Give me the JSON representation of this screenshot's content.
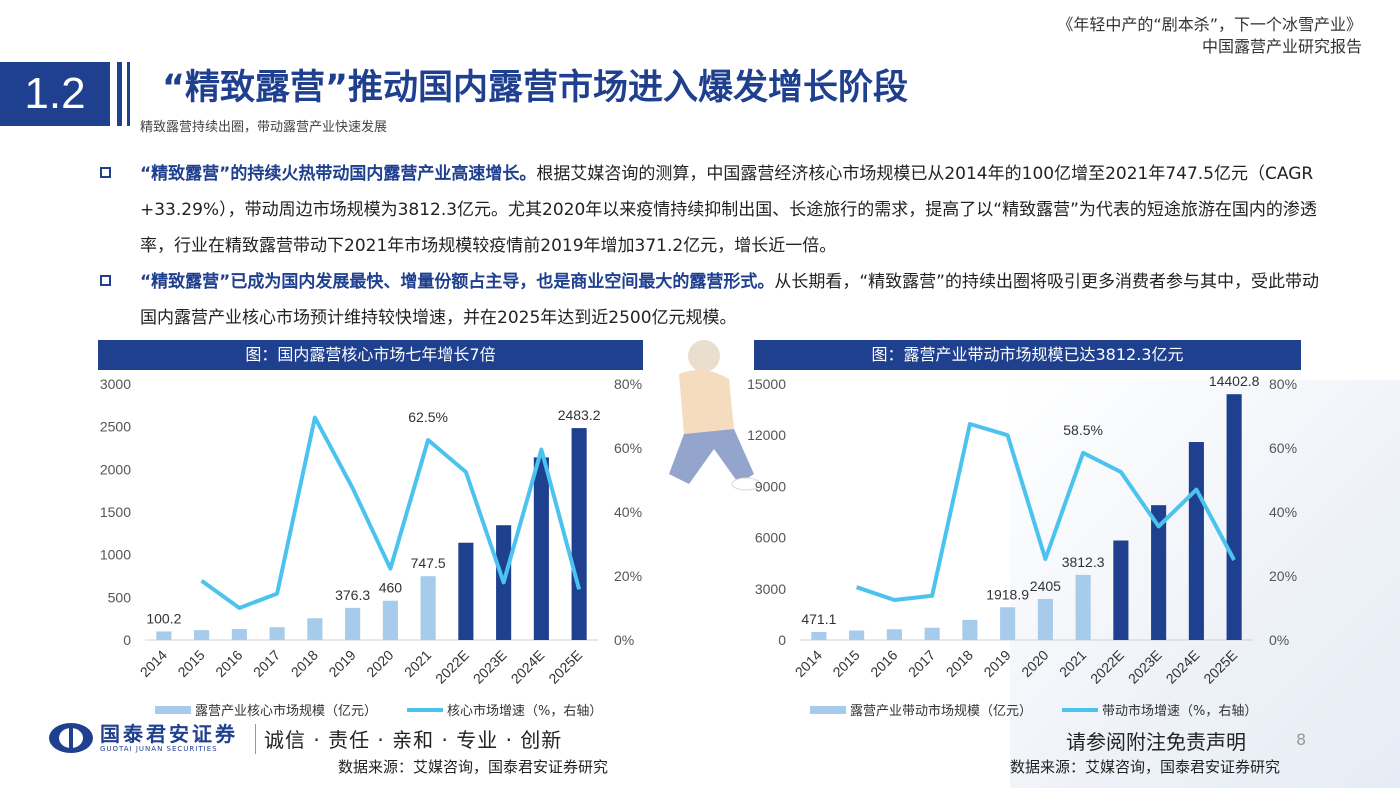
{
  "header": {
    "report_title": "《年轻中产的“剧本杀”，下一个冰雪产业》",
    "report_subtitle": "中国露营产业研究报告"
  },
  "section": {
    "number": "1.2",
    "title": "“精致露营”推动国内露营市场进入爆发增长阶段",
    "subtitle": "精致露营持续出圈，带动露营产业快速发展"
  },
  "bullets": [
    {
      "highlight": "“精致露营”的持续火热带动国内露营产业高速增长。",
      "text": "根据艾媒咨询的测算，中国露营经济核心市场规模已从2014年的100亿增至2021年747.5亿元（CAGR +33.29%），带动周边市场规模为3812.3亿元。尤其2020年以来疫情持续抑制出国、长途旅行的需求，提高了以“精致露营”为代表的短途旅游在国内的渗透率，行业在精致露营带动下2021年市场规模较疫情前2019年增加371.2亿元，增长近一倍。"
    },
    {
      "highlight": "“精致露营”已成为国内发展最快、增量份额占主导，也是商业空间最大的露营形式。",
      "text": "从长期看，“精致露营”的持续出圈将吸引更多消费者参与其中，受此带动国内露营产业核心市场预计维持较快增速，并在2025年达到近2500亿元规模。"
    }
  ],
  "chart_data": [
    {
      "type": "bar",
      "title": "图：国内露营核心市场七年增长7倍",
      "categories": [
        "2014",
        "2015",
        "2016",
        "2017",
        "2018",
        "2019",
        "2020",
        "2021",
        "2022E",
        "2023E",
        "2024E",
        "2025E"
      ],
      "series": [
        {
          "name": "露营产业核心市场规模（亿元）",
          "type": "bar",
          "axis": "left",
          "values": [
            100.2,
            116,
            128,
            150,
            255,
            376.3,
            460,
            747.5,
            1140,
            1345,
            2140,
            2483.2
          ],
          "labels": [
            "100.2",
            "",
            "",
            "",
            "",
            "376.3",
            "460",
            "747.5",
            "",
            "",
            "",
            "2483.2"
          ],
          "colors": [
            "#a7cbea",
            "#a7cbea",
            "#a7cbea",
            "#a7cbea",
            "#a7cbea",
            "#a7cbea",
            "#a7cbea",
            "#a7cbea",
            "#1f3f8f",
            "#1f3f8f",
            "#1f3f8f",
            "#1f3f8f"
          ]
        },
        {
          "name": "核心市场增速（%，右轴）",
          "type": "line",
          "axis": "right",
          "color": "#4cc3ee",
          "values": [
            null,
            18.5,
            10,
            14.5,
            69.5,
            47.5,
            22.3,
            62.5,
            52.5,
            18,
            59.5,
            15.8
          ],
          "labels": [
            "",
            "",
            "",
            "",
            "",
            "",
            "",
            "62.5%",
            "",
            "",
            "",
            ""
          ]
        }
      ],
      "ylim_left": [
        0,
        3000
      ],
      "yticks_left": [
        "0",
        "500",
        "1000",
        "1500",
        "2000",
        "2500",
        "3000"
      ],
      "ylim_right": [
        0,
        80
      ],
      "yticks_right": [
        "0%",
        "20%",
        "40%",
        "60%",
        "80%"
      ],
      "legend": "bottom",
      "source": "数据来源：艾媒咨询，国泰君安证券研究"
    },
    {
      "type": "bar",
      "title": "图：露营产业带动市场规模已达3812.3亿元",
      "categories": [
        "2014",
        "2015",
        "2016",
        "2017",
        "2018",
        "2019",
        "2020",
        "2021",
        "2022E",
        "2023E",
        "2024E",
        "2025E"
      ],
      "series": [
        {
          "name": "露营产业带动市场规模（亿元）",
          "type": "bar",
          "axis": "left",
          "values": [
            471.1,
            555,
            630,
            720,
            1180,
            1918.9,
            2405,
            3812.3,
            5830,
            7900,
            11600,
            14402.8
          ],
          "labels": [
            "471.1",
            "",
            "",
            "",
            "",
            "1918.9",
            "2405",
            "3812.3",
            "",
            "",
            "",
            "14402.8"
          ],
          "colors": [
            "#a7cbea",
            "#a7cbea",
            "#a7cbea",
            "#a7cbea",
            "#a7cbea",
            "#a7cbea",
            "#a7cbea",
            "#a7cbea",
            "#1f3f8f",
            "#1f3f8f",
            "#1f3f8f",
            "#1f3f8f"
          ]
        },
        {
          "name": "带动市场增速（%，右轴）",
          "type": "line",
          "axis": "right",
          "color": "#4cc3ee",
          "values": [
            null,
            16.5,
            12.5,
            13.8,
            67.5,
            64,
            25.3,
            58.5,
            52.5,
            35.5,
            47,
            25
          ],
          "labels": [
            "",
            "",
            "",
            "",
            "",
            "",
            "",
            "58.5%",
            "",
            "",
            "",
            ""
          ]
        }
      ],
      "ylim_left": [
        0,
        15000
      ],
      "yticks_left": [
        "0",
        "3000",
        "6000",
        "9000",
        "12000",
        "15000"
      ],
      "ylim_right": [
        0,
        80
      ],
      "yticks_right": [
        "0%",
        "20%",
        "40%",
        "60%",
        "80%"
      ],
      "legend": "bottom",
      "source": "数据来源：艾媒咨询，国泰君安证券研究"
    }
  ],
  "footer": {
    "logo_cn": "国泰君安证券",
    "logo_en": "GUOTAI JUNAN SECURITIES",
    "motto": "诚信 · 责任 · 亲和 · 专业 · 创新",
    "disclaimer": "请参阅附注免责声明",
    "page": "8"
  },
  "colors": {
    "brand": "#1f3f8f",
    "bar_light": "#a7cbea",
    "line": "#4cc3ee"
  }
}
